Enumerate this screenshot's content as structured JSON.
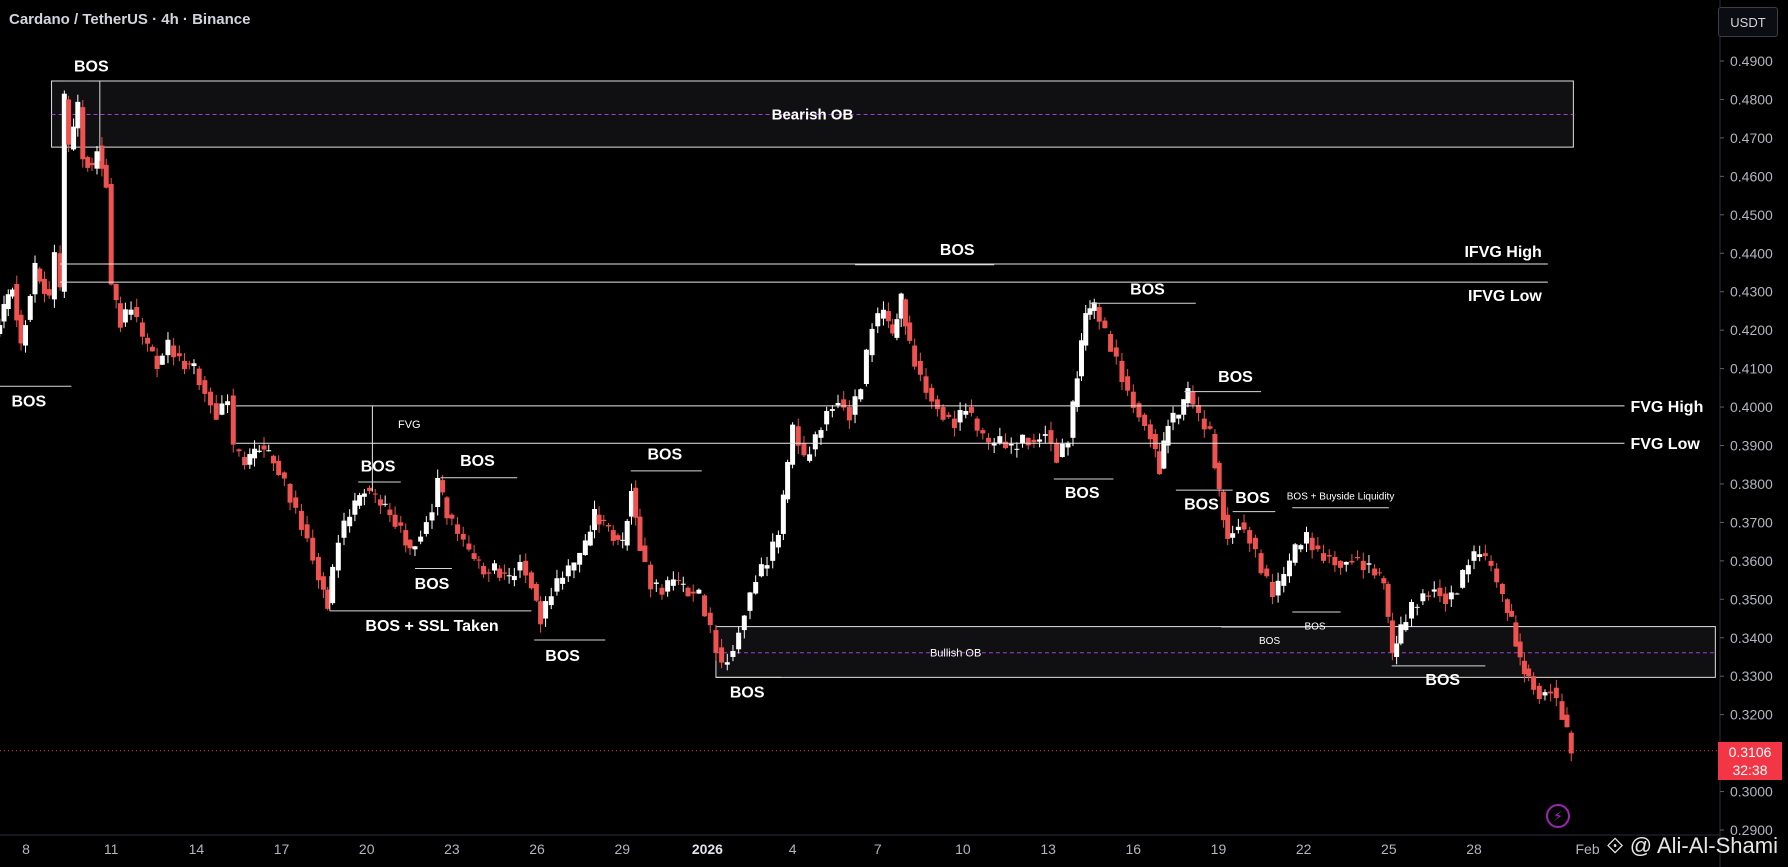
{
  "header": {
    "symbol_line": "Cardano / TetherUS · 4h · Binance"
  },
  "price_axis": {
    "unit_label": "USDT",
    "last_price": "0.3106",
    "countdown": "32:38"
  },
  "watermark": {
    "text": "@ Ali-Al-Shami",
    "icon": "binance-diamond-icon"
  },
  "flash_icon": "lightning-icon",
  "chart_data": {
    "type": "candlestick",
    "title": "Cardano / TetherUS · 4h · Binance",
    "ylim": [
      0.29,
      0.496
    ],
    "y_ticks": [
      "0.4900",
      "0.4800",
      "0.4700",
      "0.4600",
      "0.4500",
      "0.4400",
      "0.4300",
      "0.4200",
      "0.4100",
      "0.4000",
      "0.3900",
      "0.3800",
      "0.3700",
      "0.3600",
      "0.3500",
      "0.3400",
      "0.3300",
      "0.3200",
      "0.3000",
      "0.2900"
    ],
    "x_ticks": [
      {
        "label": "8",
        "day": 8
      },
      {
        "label": "11",
        "day": 11
      },
      {
        "label": "14",
        "day": 14
      },
      {
        "label": "17",
        "day": 17
      },
      {
        "label": "20",
        "day": 20
      },
      {
        "label": "23",
        "day": 23
      },
      {
        "label": "26",
        "day": 26
      },
      {
        "label": "29",
        "day": 29
      },
      {
        "label": "2026",
        "day": 32
      },
      {
        "label": "4",
        "day": 35
      },
      {
        "label": "7",
        "day": 38
      },
      {
        "label": "10",
        "day": 41
      },
      {
        "label": "13",
        "day": 44
      },
      {
        "label": "16",
        "day": 47
      },
      {
        "label": "19",
        "day": 50
      },
      {
        "label": "22",
        "day": 53
      },
      {
        "label": "25",
        "day": 56
      },
      {
        "label": "28",
        "day": 59
      },
      {
        "label": "Feb",
        "day": 63
      }
    ],
    "x_axis_note": "day index counted from Dec 1 2025 (Dec 8 = 8, Jan 1 = 32)",
    "price_path": [
      [
        7.0,
        0.419
      ],
      [
        7.6,
        0.432
      ],
      [
        7.9,
        0.416
      ],
      [
        8.4,
        0.436
      ],
      [
        8.9,
        0.428
      ],
      [
        9.1,
        0.44
      ],
      [
        9.3,
        0.43
      ],
      [
        9.4,
        0.48
      ],
      [
        9.6,
        0.467
      ],
      [
        9.9,
        0.478
      ],
      [
        10.1,
        0.465
      ],
      [
        10.4,
        0.462
      ],
      [
        10.6,
        0.468
      ],
      [
        10.9,
        0.458
      ],
      [
        11.1,
        0.432
      ],
      [
        11.4,
        0.422
      ],
      [
        11.8,
        0.426
      ],
      [
        12.2,
        0.418
      ],
      [
        12.7,
        0.411
      ],
      [
        13.1,
        0.416
      ],
      [
        13.5,
        0.412
      ],
      [
        14.0,
        0.41
      ],
      [
        14.4,
        0.404
      ],
      [
        14.8,
        0.398
      ],
      [
        15.2,
        0.403
      ],
      [
        15.4,
        0.389
      ],
      [
        15.8,
        0.385
      ],
      [
        16.3,
        0.39
      ],
      [
        16.8,
        0.386
      ],
      [
        17.2,
        0.38
      ],
      [
        17.6,
        0.373
      ],
      [
        18.0,
        0.366
      ],
      [
        18.4,
        0.356
      ],
      [
        18.7,
        0.349
      ],
      [
        19.1,
        0.366
      ],
      [
        19.5,
        0.372
      ],
      [
        20.0,
        0.379
      ],
      [
        20.4,
        0.376
      ],
      [
        20.9,
        0.372
      ],
      [
        21.3,
        0.368
      ],
      [
        21.6,
        0.363
      ],
      [
        22.0,
        0.367
      ],
      [
        22.4,
        0.374
      ],
      [
        22.6,
        0.381
      ],
      [
        22.9,
        0.372
      ],
      [
        23.3,
        0.367
      ],
      [
        23.7,
        0.362
      ],
      [
        24.2,
        0.357
      ],
      [
        24.6,
        0.358
      ],
      [
        25.1,
        0.355
      ],
      [
        25.5,
        0.36
      ],
      [
        25.9,
        0.354
      ],
      [
        26.2,
        0.345
      ],
      [
        26.6,
        0.352
      ],
      [
        27.0,
        0.356
      ],
      [
        27.4,
        0.359
      ],
      [
        27.8,
        0.364
      ],
      [
        28.1,
        0.372
      ],
      [
        28.6,
        0.368
      ],
      [
        29.1,
        0.364
      ],
      [
        29.4,
        0.379
      ],
      [
        29.7,
        0.364
      ],
      [
        30.1,
        0.354
      ],
      [
        30.5,
        0.352
      ],
      [
        30.9,
        0.355
      ],
      [
        31.4,
        0.352
      ],
      [
        31.8,
        0.351
      ],
      [
        32.2,
        0.342
      ],
      [
        32.6,
        0.333
      ],
      [
        33.0,
        0.337
      ],
      [
        33.4,
        0.347
      ],
      [
        33.8,
        0.356
      ],
      [
        34.2,
        0.36
      ],
      [
        34.6,
        0.367
      ],
      [
        34.9,
        0.385
      ],
      [
        35.1,
        0.395
      ],
      [
        35.5,
        0.386
      ],
      [
        35.9,
        0.392
      ],
      [
        36.3,
        0.399
      ],
      [
        36.7,
        0.402
      ],
      [
        37.1,
        0.398
      ],
      [
        37.5,
        0.406
      ],
      [
        37.9,
        0.421
      ],
      [
        38.3,
        0.425
      ],
      [
        38.6,
        0.418
      ],
      [
        38.9,
        0.428
      ],
      [
        39.2,
        0.416
      ],
      [
        39.6,
        0.408
      ],
      [
        40.0,
        0.402
      ],
      [
        40.4,
        0.398
      ],
      [
        40.8,
        0.396
      ],
      [
        41.2,
        0.4
      ],
      [
        41.6,
        0.394
      ],
      [
        42.0,
        0.39
      ],
      [
        42.4,
        0.391
      ],
      [
        42.8,
        0.389
      ],
      [
        43.2,
        0.392
      ],
      [
        43.6,
        0.391
      ],
      [
        44.0,
        0.394
      ],
      [
        44.4,
        0.387
      ],
      [
        44.8,
        0.392
      ],
      [
        45.1,
        0.408
      ],
      [
        45.4,
        0.424
      ],
      [
        45.7,
        0.426
      ],
      [
        46.1,
        0.419
      ],
      [
        46.5,
        0.412
      ],
      [
        46.9,
        0.404
      ],
      [
        47.3,
        0.398
      ],
      [
        47.7,
        0.393
      ],
      [
        48.0,
        0.384
      ],
      [
        48.3,
        0.396
      ],
      [
        48.7,
        0.398
      ],
      [
        49.0,
        0.404
      ],
      [
        49.4,
        0.397
      ],
      [
        49.8,
        0.393
      ],
      [
        50.1,
        0.378
      ],
      [
        50.4,
        0.366
      ],
      [
        50.8,
        0.37
      ],
      [
        51.2,
        0.366
      ],
      [
        51.6,
        0.358
      ],
      [
        52.0,
        0.351
      ],
      [
        52.4,
        0.356
      ],
      [
        52.8,
        0.363
      ],
      [
        53.2,
        0.366
      ],
      [
        53.6,
        0.362
      ],
      [
        54.0,
        0.361
      ],
      [
        54.4,
        0.359
      ],
      [
        54.8,
        0.361
      ],
      [
        55.2,
        0.359
      ],
      [
        55.6,
        0.357
      ],
      [
        55.9,
        0.354
      ],
      [
        56.2,
        0.335
      ],
      [
        56.5,
        0.342
      ],
      [
        56.9,
        0.348
      ],
      [
        57.3,
        0.351
      ],
      [
        57.7,
        0.353
      ],
      [
        58.1,
        0.35
      ],
      [
        58.5,
        0.353
      ],
      [
        58.9,
        0.36
      ],
      [
        59.3,
        0.362
      ],
      [
        59.7,
        0.358
      ],
      [
        60.1,
        0.35
      ],
      [
        60.4,
        0.344
      ],
      [
        60.7,
        0.334
      ],
      [
        61.0,
        0.33
      ],
      [
        61.4,
        0.325
      ],
      [
        61.8,
        0.327
      ],
      [
        62.2,
        0.32
      ],
      [
        62.5,
        0.3106
      ]
    ],
    "zones": [
      {
        "name": "bearish-ob",
        "label": "Bearish OB",
        "start_day": 8.9,
        "end_day": 62.5,
        "top": 0.4848,
        "bottom": 0.4676,
        "mid": 0.4761
      },
      {
        "name": "bullish-ob",
        "label": "Bullish OB",
        "start_day": 32.3,
        "end_day": 67.5,
        "top": 0.3429,
        "bottom": 0.3297,
        "mid": 0.3361
      }
    ],
    "levels": [
      {
        "name": "ifvg-high",
        "label": "IFVG High",
        "start_day": 9.2,
        "end_day": 61.6,
        "price": 0.4372
      },
      {
        "name": "ifvg-low",
        "label": "IFVG Low",
        "start_day": 9.2,
        "end_day": 61.6,
        "price": 0.4325
      },
      {
        "name": "fvg-high",
        "label": "FVG High",
        "start_day": 15.4,
        "end_day": 64.3,
        "price": 0.4003
      },
      {
        "name": "fvg-low",
        "label": "FVG Low",
        "start_day": 15.4,
        "end_day": 64.3,
        "price": 0.3906
      }
    ],
    "fvg_label": {
      "text": "FVG",
      "day": 21.5,
      "price": 0.3945
    },
    "bos_marks": [
      {
        "label": "BOS",
        "start_day": 9.3,
        "end_day": 10.2,
        "price": 0.4848,
        "text_day": 10.3,
        "text_price": 0.4886,
        "size": "large"
      },
      {
        "label": "BOS",
        "start_day": 6.6,
        "end_day": 9.6,
        "price": 0.4054,
        "text_day": 8.1,
        "text_price": 0.4015,
        "size": "large"
      },
      {
        "label": "BOS",
        "start_day": 37.2,
        "end_day": 42.1,
        "price": 0.437,
        "text_day": 40.8,
        "text_price": 0.4408,
        "size": "large"
      },
      {
        "label": "BOS",
        "start_day": 45.5,
        "end_day": 49.2,
        "price": 0.427,
        "text_day": 47.5,
        "text_price": 0.4306,
        "size": "large"
      },
      {
        "label": "BOS",
        "start_day": 48.8,
        "end_day": 51.5,
        "price": 0.404,
        "text_day": 50.6,
        "text_price": 0.4078,
        "size": "large"
      },
      {
        "label": "BOS",
        "start_day": 19.7,
        "end_day": 21.2,
        "price": 0.3805,
        "text_day": 20.4,
        "text_price": 0.3846,
        "size": "large"
      },
      {
        "label": "BOS",
        "start_day": 22.6,
        "end_day": 25.3,
        "price": 0.3816,
        "text_day": 23.9,
        "text_price": 0.386,
        "size": "large"
      },
      {
        "label": "BOS",
        "start_day": 29.3,
        "end_day": 31.8,
        "price": 0.3834,
        "text_day": 30.5,
        "text_price": 0.3876,
        "size": "large"
      },
      {
        "label": "BOS",
        "start_day": 21.7,
        "end_day": 23.0,
        "price": 0.358,
        "text_day": 22.3,
        "text_price": 0.354,
        "size": "large"
      },
      {
        "label": "BOS + SSL Taken",
        "start_day": 18.7,
        "end_day": 25.8,
        "price": 0.347,
        "text_day": 22.3,
        "text_price": 0.343,
        "size": "large"
      },
      {
        "label": "BOS",
        "start_day": 25.9,
        "end_day": 28.4,
        "price": 0.3394,
        "text_day": 26.9,
        "text_price": 0.3352,
        "size": "large"
      },
      {
        "label": "BOS",
        "start_day": 32.3,
        "end_day": 34.6,
        "price": 0.3297,
        "text_day": 33.4,
        "text_price": 0.3258,
        "size": "large"
      },
      {
        "label": "BOS",
        "start_day": 44.2,
        "end_day": 46.3,
        "price": 0.3813,
        "text_day": 45.2,
        "text_price": 0.3776,
        "size": "large"
      },
      {
        "label": "BOS",
        "start_day": 48.5,
        "end_day": 50.5,
        "price": 0.3784,
        "text_day": 49.4,
        "text_price": 0.3747,
        "size": "large"
      },
      {
        "label": "BOS",
        "start_day": 50.5,
        "end_day": 52.0,
        "price": 0.3728,
        "text_day": 51.2,
        "text_price": 0.3764,
        "size": "large"
      },
      {
        "label": "BOS + Buyside Liquidity",
        "start_day": 52.6,
        "end_day": 56.0,
        "price": 0.3738,
        "text_day": 54.3,
        "text_price": 0.3772,
        "size": "small"
      },
      {
        "label": "BOS",
        "start_day": 50.1,
        "end_day": 53.2,
        "price": 0.3428,
        "text_day": 51.8,
        "text_price": 0.3397,
        "size": "small"
      },
      {
        "label": "BOS",
        "start_day": 52.6,
        "end_day": 54.3,
        "price": 0.3467,
        "text_day": 53.4,
        "text_price": 0.3434,
        "size": "small"
      },
      {
        "label": "BOS",
        "start_day": 56.1,
        "end_day": 59.4,
        "price": 0.3327,
        "text_day": 57.9,
        "text_price": 0.329,
        "size": "large"
      }
    ],
    "colors": {
      "background": "#000000",
      "bullish": "#ffffff",
      "bearish": "#ef5350",
      "zone_fill": "#101012",
      "zone_mid": "#a23fd6",
      "line": "#e8e8e8",
      "axis_text": "#b2b5be",
      "last_price": "#f23645"
    }
  }
}
